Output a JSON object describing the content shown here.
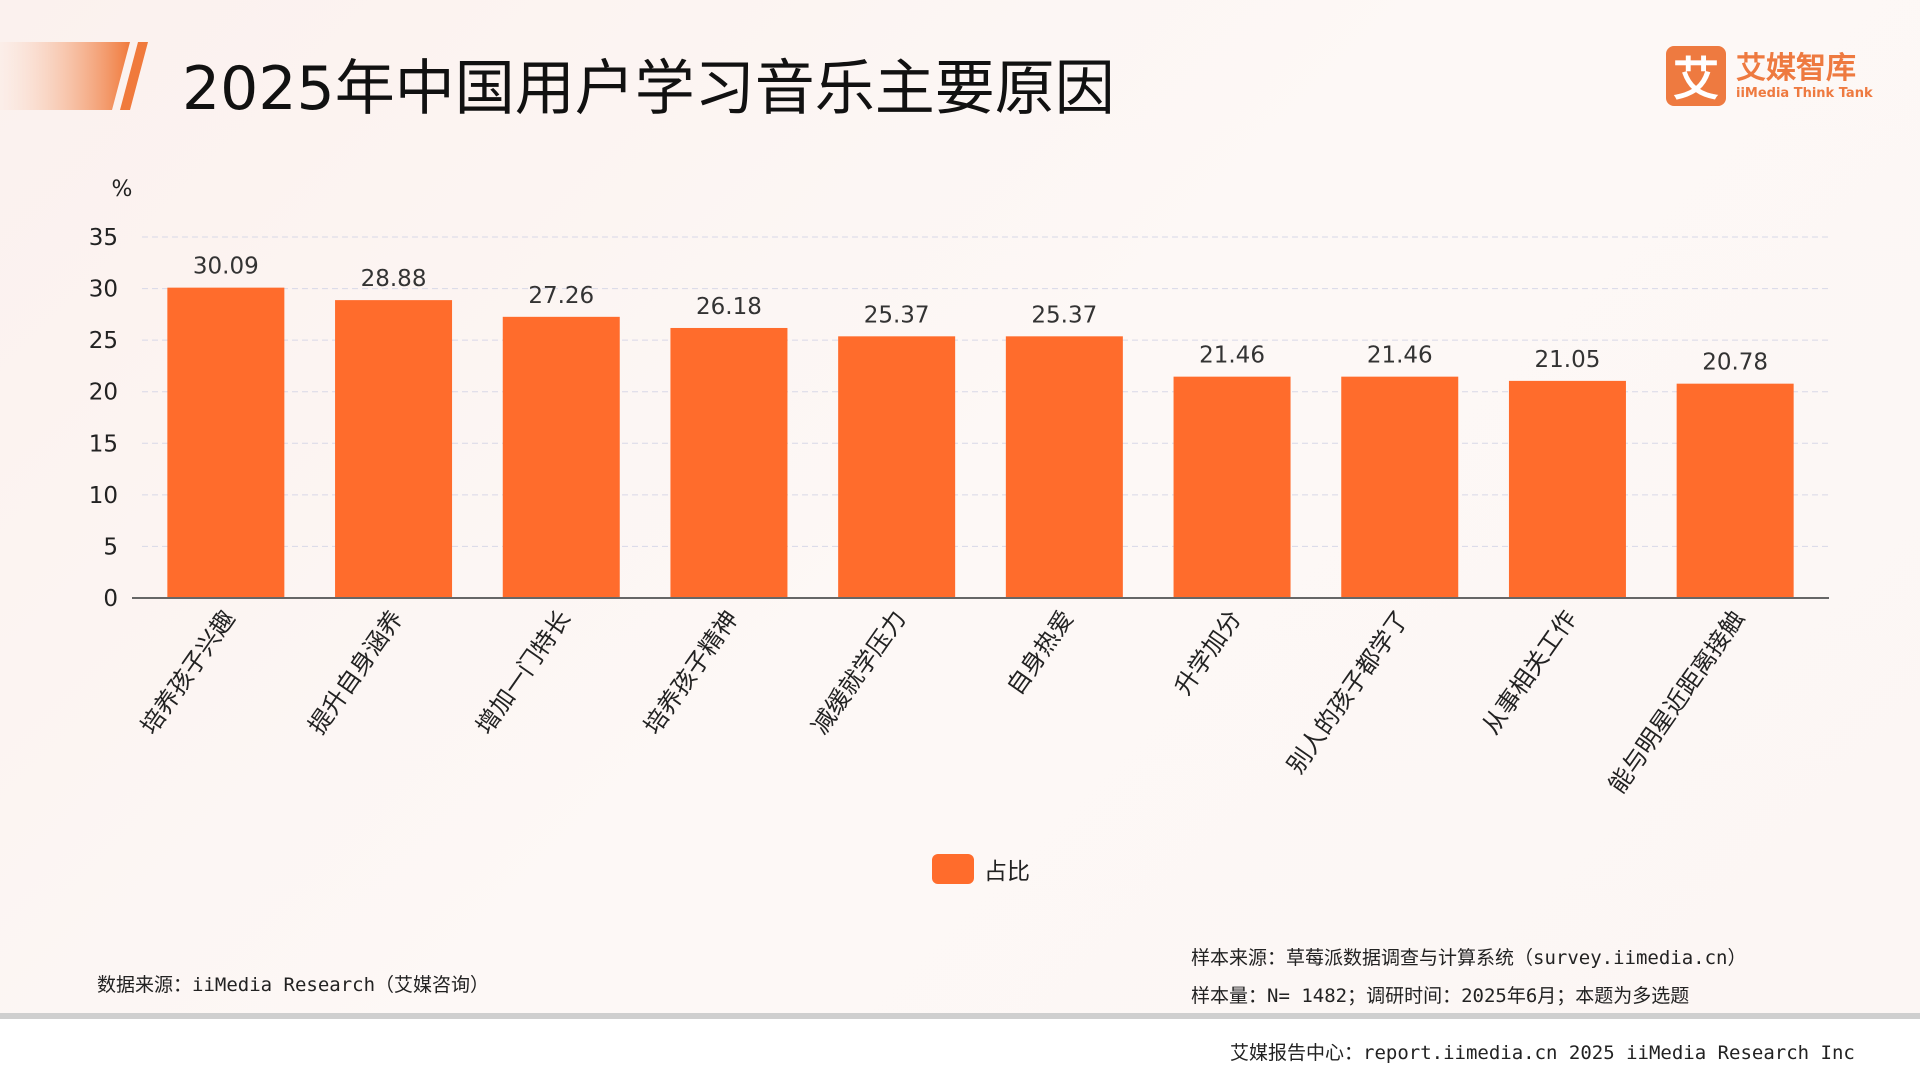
{
  "header": {
    "title": "2025年中国用户学习音乐主要原因"
  },
  "logo": {
    "mark": "艾",
    "cn": "艾媒智库",
    "en": "iiMedia Think Tank"
  },
  "colors": {
    "bar": "#ff6c2c",
    "accent": "#ee7a40",
    "grid": "#d8d8e8"
  },
  "chart_data": {
    "type": "bar",
    "title": "2025年中国用户学习音乐主要原因",
    "ylabel": "%",
    "ylim": [
      0,
      35
    ],
    "yticks": [
      0,
      5,
      10,
      15,
      20,
      25,
      30,
      35
    ],
    "grid": true,
    "legend_position": "bottom",
    "categories": [
      "培养孩子兴趣",
      "提升自身涵养",
      "增加一门特长",
      "培养孩子精神",
      "减缓就学压力",
      "自身热爱",
      "升学加分",
      "别人的孩子都学了",
      "从事相关工作",
      "能与明星近距离接触"
    ],
    "series": [
      {
        "name": "占比",
        "values": [
          30.09,
          28.88,
          27.26,
          26.18,
          25.37,
          25.37,
          21.46,
          21.46,
          21.05,
          20.78
        ]
      }
    ]
  },
  "notes": {
    "data_source": "数据来源：iiMedia Research（艾媒咨询）",
    "sample_source": "样本来源：草莓派数据调查与计算系统（survey.iimedia.cn）",
    "sample_size": "样本量：N= 1482；调研时间：2025年6月；本题为多选题",
    "footer": "艾媒报告中心：report.iimedia.cn   2025 iiMedia Research Inc"
  }
}
